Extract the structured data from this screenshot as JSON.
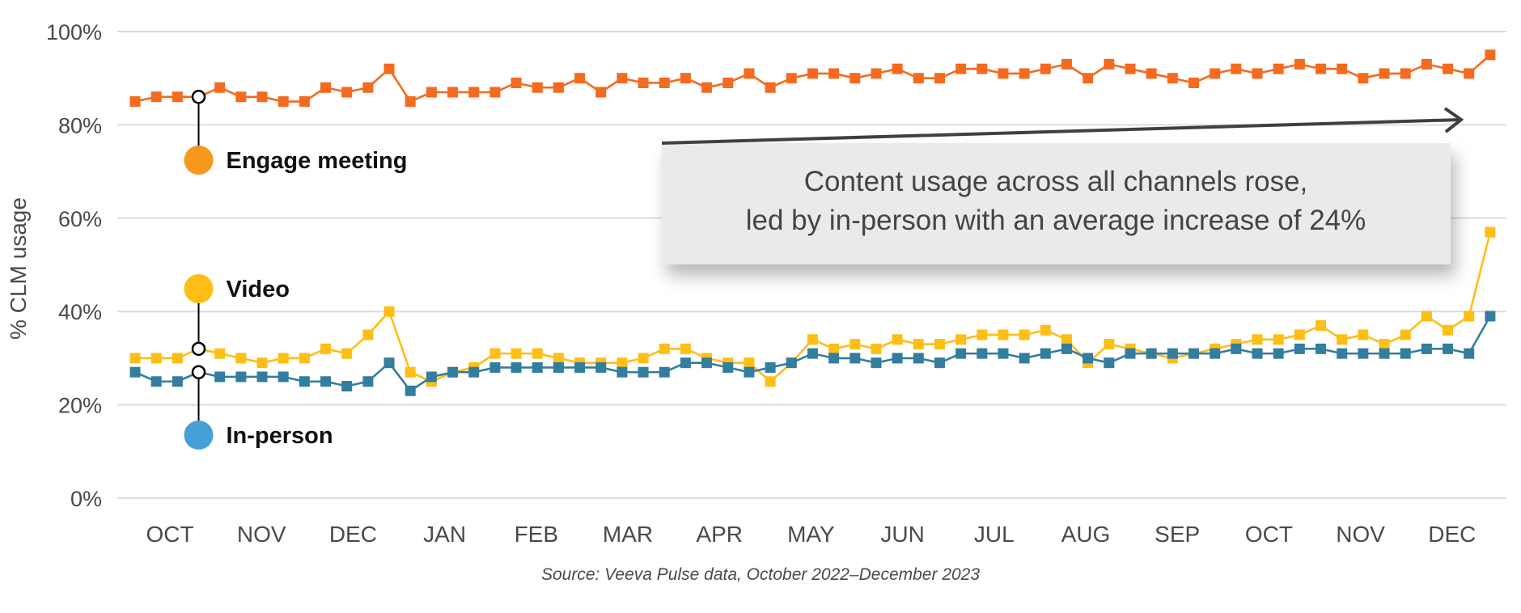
{
  "chart_data": {
    "type": "line",
    "title": "",
    "xlabel": "",
    "ylabel": "% CLM usage",
    "ylim": [
      0,
      100
    ],
    "y_ticks": [
      "0%",
      "20%",
      "40%",
      "60%",
      "80%",
      "100%"
    ],
    "y_tick_values": [
      0,
      20,
      40,
      60,
      80,
      100
    ],
    "grid": true,
    "x_tick_labels": [
      "OCT",
      "NOV",
      "DEC",
      "JAN",
      "FEB",
      "MAR",
      "APR",
      "MAY",
      "JUN",
      "JUL",
      "AUG",
      "SEP",
      "OCT",
      "NOV",
      "DEC"
    ],
    "x_period": "weekly, October 2022 – December 2023",
    "highlight_index": 3,
    "series": [
      {
        "name": "Engage meeting",
        "line_color": "#F46A1F",
        "legend_color": "#F7971E",
        "values": [
          85,
          86,
          86,
          86,
          88,
          86,
          86,
          85,
          85,
          88,
          87,
          88,
          92,
          85,
          87,
          87,
          87,
          87,
          89,
          88,
          88,
          90,
          87,
          90,
          89,
          89,
          90,
          88,
          89,
          91,
          88,
          90,
          91,
          91,
          90,
          91,
          92,
          90,
          90,
          92,
          92,
          91,
          91,
          92,
          93,
          90,
          93,
          92,
          91,
          90,
          89,
          91,
          92,
          91,
          92,
          93,
          92,
          92,
          90,
          91,
          91,
          93,
          92,
          91,
          95
        ]
      },
      {
        "name": "Video",
        "line_color": "#FDBE16",
        "legend_color": "#FDBE16",
        "values": [
          30,
          30,
          30,
          32,
          31,
          30,
          29,
          30,
          30,
          32,
          31,
          35,
          40,
          27,
          25,
          27,
          28,
          31,
          31,
          31,
          30,
          29,
          29,
          29,
          30,
          32,
          32,
          30,
          29,
          29,
          25,
          29,
          34,
          32,
          33,
          32,
          34,
          33,
          33,
          34,
          35,
          35,
          35,
          36,
          34,
          29,
          33,
          32,
          31,
          30,
          31,
          32,
          33,
          34,
          34,
          35,
          37,
          34,
          35,
          33,
          35,
          39,
          36,
          39,
          57
        ]
      },
      {
        "name": "In-person",
        "line_color": "#337D9E",
        "legend_color": "#46A0D8",
        "values": [
          27,
          25,
          25,
          27,
          26,
          26,
          26,
          26,
          25,
          25,
          24,
          25,
          29,
          23,
          26,
          27,
          27,
          28,
          28,
          28,
          28,
          28,
          28,
          27,
          27,
          27,
          29,
          29,
          28,
          27,
          28,
          29,
          31,
          30,
          30,
          29,
          30,
          30,
          29,
          31,
          31,
          31,
          30,
          31,
          32,
          30,
          29,
          31,
          31,
          31,
          31,
          31,
          32,
          31,
          31,
          32,
          32,
          31,
          31,
          31,
          31,
          32,
          32,
          31,
          39
        ]
      }
    ],
    "annotation": {
      "line1": "Content usage across all channels rose,",
      "line2": "led by in-person with an average increase of 24%"
    },
    "source": "Source: Veeva Pulse data, October 2022–December 2023"
  }
}
